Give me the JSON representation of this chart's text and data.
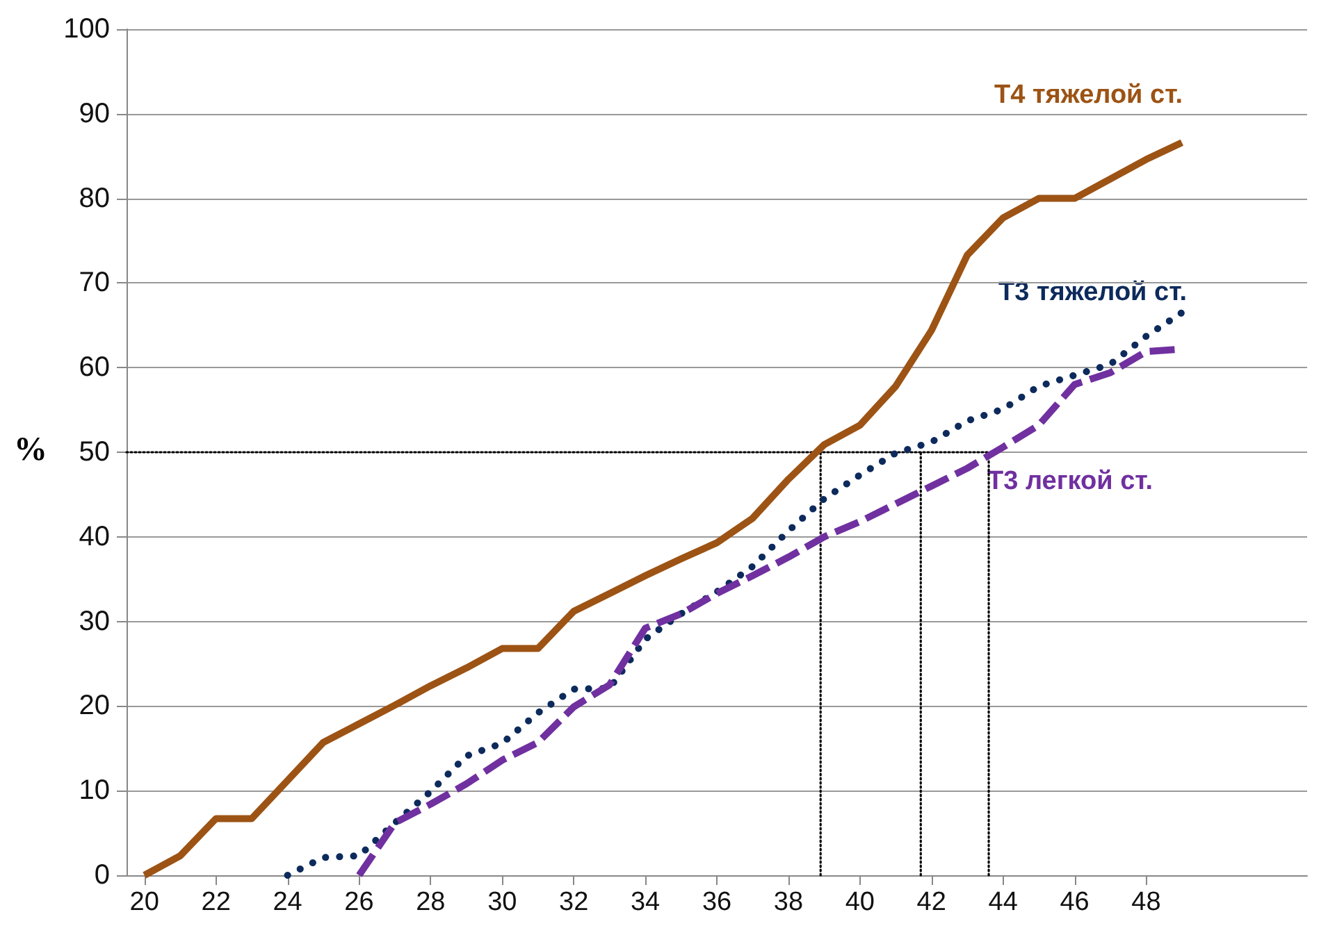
{
  "chart_data": {
    "type": "line",
    "ylabel": "%",
    "xlim": [
      19.5,
      52.5
    ],
    "ylim": [
      0,
      100
    ],
    "yticks": [
      0,
      10,
      20,
      30,
      40,
      50,
      60,
      70,
      80,
      90,
      100
    ],
    "xticks": [
      20,
      22,
      24,
      26,
      28,
      30,
      32,
      34,
      36,
      38,
      40,
      42,
      44,
      46,
      48
    ],
    "grid": "y",
    "legend": false,
    "marker": "none",
    "series": [
      {
        "name": "T4 тяжелой ст.",
        "color": "#9c5314",
        "line_style": "solid",
        "x": [
          20,
          21,
          22,
          23,
          24,
          25,
          26,
          27,
          28,
          29,
          30,
          31,
          32,
          33,
          34,
          35,
          36,
          37,
          38,
          39,
          40,
          41,
          42,
          43,
          44,
          45,
          46,
          47,
          48,
          49
        ],
        "values": [
          0,
          2.3,
          6.7,
          6.7,
          11.2,
          15.7,
          17.9,
          20.1,
          22.4,
          24.5,
          26.8,
          26.8,
          31.2,
          33.3,
          35.4,
          37.4,
          39.3,
          42.2,
          46.8,
          50.9,
          53.2,
          57.8,
          64.4,
          73.3,
          77.7,
          80,
          80,
          82.3,
          84.6,
          86.6
        ]
      },
      {
        "name": "T3 тяжелой ст.",
        "color": "#0d2a5c",
        "line_style": "dotted",
        "x": [
          24,
          25,
          26,
          27,
          28,
          29,
          30,
          31,
          32,
          33,
          34,
          35,
          36,
          37,
          38,
          39,
          40,
          41,
          42,
          43,
          44,
          45,
          46,
          47,
          48,
          49
        ],
        "values": [
          0,
          2.1,
          2.3,
          6.2,
          9.9,
          14.1,
          15.6,
          19.2,
          22,
          22.1,
          27.9,
          30.9,
          33.5,
          36.5,
          40.7,
          44.5,
          47.3,
          49.9,
          51.2,
          53.7,
          55.1,
          57.8,
          59.1,
          60.4,
          63.7,
          66.5
        ]
      },
      {
        "name": "T3 легкой ст.",
        "color": "#7030a0",
        "line_style": "dashed",
        "x": [
          26,
          27,
          28,
          29,
          30,
          31,
          32,
          33,
          34,
          35,
          36,
          37,
          38,
          39,
          40,
          41,
          42,
          43,
          44,
          45,
          46,
          47,
          48,
          49
        ],
        "values": [
          0,
          6.2,
          8.4,
          10.8,
          13.6,
          15.7,
          19.9,
          22.5,
          29.2,
          30.9,
          33.3,
          35.4,
          37.6,
          40,
          41.8,
          43.9,
          46,
          48.1,
          50.6,
          53.2,
          58,
          59.4,
          61.9,
          62.2
        ]
      },
      {
        "color": "#000000",
        "line_style": "dotted",
        "x": [
          19.5,
          43.6
        ],
        "values": [
          50,
          50
        ]
      },
      {
        "color": "#000000",
        "line_style": "dotted",
        "x": [
          38.9,
          38.9
        ],
        "values": [
          0,
          50
        ]
      },
      {
        "color": "#000000",
        "line_style": "dotted",
        "x": [
          41.7,
          41.7
        ],
        "values": [
          0,
          50
        ]
      },
      {
        "color": "#000000",
        "line_style": "dotted",
        "x": [
          43.6,
          43.6
        ],
        "values": [
          0,
          50
        ]
      }
    ]
  }
}
